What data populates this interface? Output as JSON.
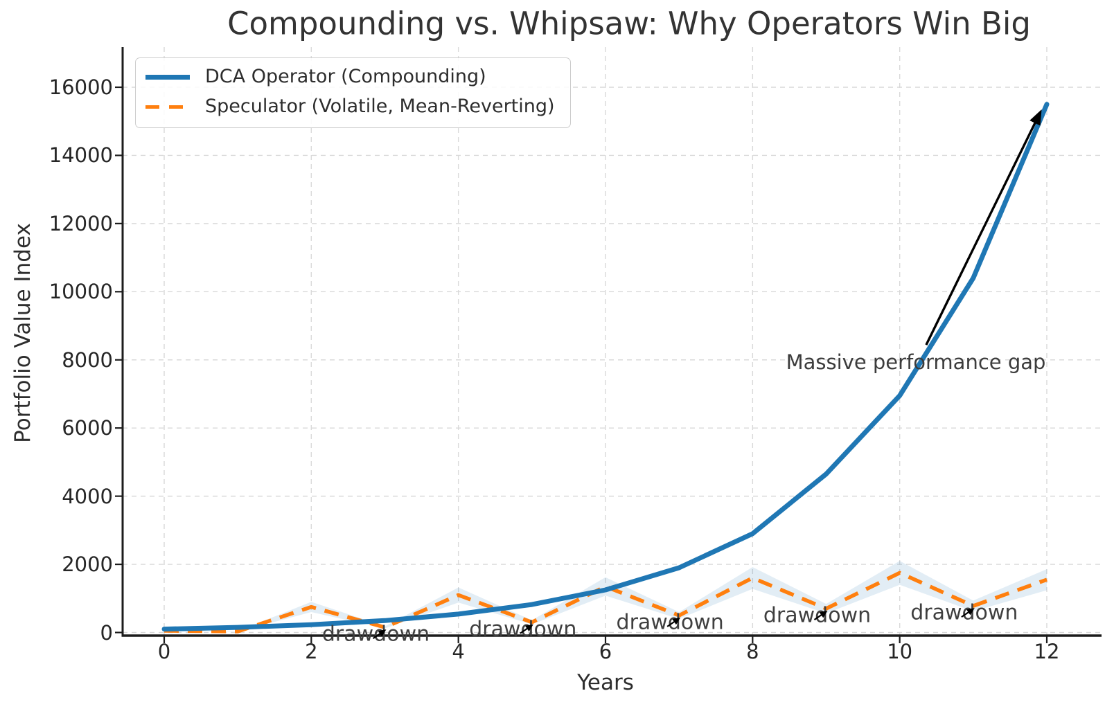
{
  "title": "Compounding vs. Whipsaw: Why Operators Win Big",
  "colors": {
    "dca_line": "#1f77b4",
    "speculator_line": "#ff7f0e",
    "speculator_band": "rgba(31,119,180,0.13)",
    "grid": "#d9d9d9",
    "spine": "#1c1c1c",
    "tick_text": "#262626",
    "title_text": "#333333",
    "annotation_text": "#3c3c3c",
    "arrow": "#000000",
    "legend_border": "#cccccc"
  },
  "chart_data": {
    "type": "line",
    "title": "Compounding vs. Whipsaw: Why Operators Win Big",
    "xlabel": "Years",
    "ylabel": "Portfolio Value Index",
    "x": [
      0,
      1,
      2,
      3,
      4,
      5,
      6,
      7,
      8,
      9,
      10,
      11,
      12
    ],
    "series": [
      {
        "name": "DCA Operator (Compounding)",
        "color": "#1f77b4",
        "line_style": "solid",
        "line_width": 7,
        "values": [
          100,
          150,
          230,
          350,
          540,
          820,
          1250,
          1900,
          2900,
          4650,
          6950,
          10400,
          15500
        ]
      },
      {
        "name": "Speculator (Volatile, Mean-Reverting)",
        "color": "#ff7f0e",
        "line_style": "dashed",
        "line_width": 5.5,
        "values": [
          50,
          30,
          750,
          150,
          1100,
          300,
          1350,
          500,
          1600,
          700,
          1750,
          780,
          1550
        ],
        "band_pct": 0.2,
        "band_color": "rgba(31,119,180,0.13)"
      }
    ],
    "x_ticks": [
      0,
      2,
      4,
      6,
      8,
      10,
      12
    ],
    "y_ticks": [
      0,
      2000,
      4000,
      6000,
      8000,
      10000,
      12000,
      14000,
      16000
    ],
    "xlim": [
      -0.57,
      12.74
    ],
    "ylim": [
      -91,
      17178
    ],
    "grid": true,
    "grid_style": "dashed",
    "legend_position": "upper left",
    "annotations": {
      "gap": {
        "text": "Massive performance gap",
        "text_year": 10.22,
        "text_value": 7935,
        "arrow_from_year": 10.36,
        "arrow_from_value": 8440,
        "arrow_to_year": 11.93,
        "arrow_to_value": 15350
      },
      "drawdowns": {
        "label": "drawdown",
        "points": [
          {
            "year": 3,
            "value": 150
          },
          {
            "year": 5,
            "value": 300
          },
          {
            "year": 7,
            "value": 500
          },
          {
            "year": 9,
            "value": 700
          },
          {
            "year": 11,
            "value": 780
          }
        ]
      }
    }
  }
}
